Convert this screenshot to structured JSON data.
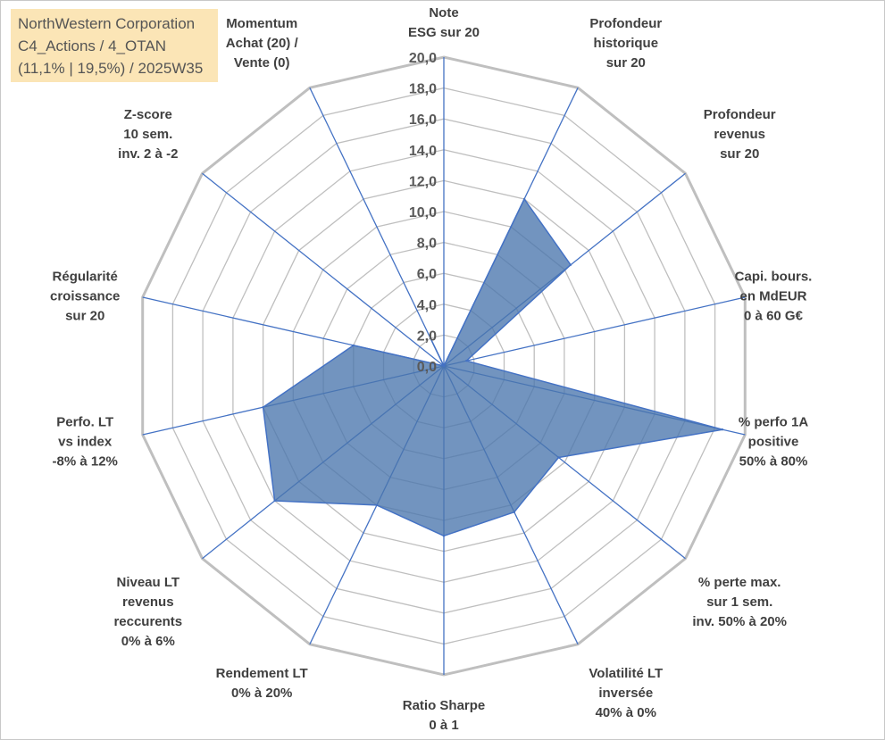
{
  "info_box": {
    "line1": "NorthWestern Corporation",
    "line2": "C4_Actions / 4_OTAN",
    "line3": "(11,1% | 19,5%) / 2025W35",
    "background": "#fbe5b6"
  },
  "colors": {
    "grid": "#bfbfbf",
    "spoke": "#4472c4",
    "fill": "#4a76ad",
    "axis_text": "#404040",
    "tick_text": "#595959"
  },
  "chart_data": {
    "type": "radar",
    "title": "",
    "rmin": 0,
    "rmax": 20,
    "tick_step": 2,
    "tick_labels": [
      "0,0",
      "2,0",
      "4,0",
      "6,0",
      "8,0",
      "10,0",
      "12,0",
      "14,0",
      "16,0",
      "18,0",
      "20,0"
    ],
    "axes": [
      [
        "Note",
        "ESG sur 20"
      ],
      [
        "Profondeur",
        "historique",
        "sur 20"
      ],
      [
        "Profondeur",
        "revenus",
        "sur 20"
      ],
      [
        "Capi. bours.",
        "en MdEUR",
        "0 à 60 G€"
      ],
      [
        "% perfo 1A",
        "positive",
        "50% à 80%"
      ],
      [
        "% perte max.",
        "sur 1 sem.",
        "inv. 50% à 20%"
      ],
      [
        "Volatilité LT",
        "inversée",
        "40% à 0%"
      ],
      [
        "Ratio Sharpe",
        "0 à 1"
      ],
      [
        "Rendement LT",
        "0% à 20%"
      ],
      [
        "Niveau LT",
        "revenus",
        "reccurents",
        "0% à 6%"
      ],
      [
        "Perfo. LT",
        "vs index",
        "-8% à 12%"
      ],
      [
        "Régularité",
        "croissance",
        "sur 20"
      ],
      [
        "Z-score",
        "10 sem.",
        "inv. 2 à -2"
      ],
      [
        "Momentum",
        "Achat (20) /",
        "Vente (0)"
      ]
    ],
    "series": [
      {
        "values": [
          0.0,
          12.0,
          10.5,
          1.5,
          18.5,
          9.5,
          10.5,
          11.0,
          10.0,
          14.0,
          12.0,
          6.0,
          0.0,
          2.0
        ]
      }
    ],
    "grid": true,
    "legend": "none"
  }
}
